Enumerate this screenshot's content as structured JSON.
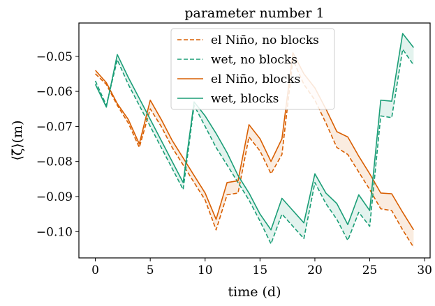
{
  "chart_data": {
    "type": "line",
    "title": "parameter number 1",
    "xlabel": "time (d)",
    "ylabel": "⟨ζ̄⟩(m)",
    "xlim": [
      -1.5,
      30.5
    ],
    "ylim": [
      -0.1075,
      -0.0405
    ],
    "xticks": [
      0,
      5,
      10,
      15,
      20,
      25,
      30
    ],
    "yticks": [
      -0.05,
      -0.06,
      -0.07,
      -0.08,
      -0.09,
      -0.1
    ],
    "xtick_labels": [
      "0",
      "5",
      "10",
      "15",
      "20",
      "25",
      "30"
    ],
    "ytick_labels": [
      "−0.05",
      "−0.06",
      "−0.07",
      "−0.08",
      "−0.09",
      "−0.10"
    ],
    "grid": false,
    "legend_position": "top-center",
    "x": [
      0,
      1,
      2,
      3,
      4,
      5,
      6,
      7,
      8,
      9,
      10,
      11,
      12,
      13,
      14,
      15,
      16,
      17,
      18,
      19,
      20,
      21,
      22,
      23,
      24,
      25,
      26,
      27,
      28,
      29
    ],
    "series": [
      {
        "name": "el Niño, no blocks",
        "style": "dashed",
        "color": "#d95f02",
        "values": [
          -0.055,
          -0.058,
          -0.064,
          -0.069,
          -0.076,
          -0.065,
          -0.07,
          -0.076,
          -0.081,
          -0.086,
          -0.091,
          -0.0995,
          -0.0895,
          -0.089,
          -0.073,
          -0.077,
          -0.0835,
          -0.078,
          -0.051,
          -0.058,
          -0.0625,
          -0.069,
          -0.076,
          -0.078,
          -0.083,
          -0.088,
          -0.0935,
          -0.094,
          -0.0995,
          -0.1045
        ]
      },
      {
        "name": "wet, no blocks",
        "style": "dashed",
        "color": "#1b9e77",
        "values": [
          -0.057,
          -0.064,
          -0.051,
          -0.058,
          -0.064,
          -0.07,
          -0.076,
          -0.082,
          -0.088,
          -0.064,
          -0.07,
          -0.076,
          -0.081,
          -0.086,
          -0.091,
          -0.097,
          -0.1035,
          -0.095,
          -0.0985,
          -0.102,
          -0.086,
          -0.092,
          -0.0965,
          -0.1025,
          -0.0945,
          -0.0985,
          -0.067,
          -0.0675,
          -0.048,
          -0.0525
        ]
      },
      {
        "name": "el Niño, blocks",
        "style": "solid",
        "color": "#d95f02",
        "values": [
          -0.054,
          -0.0575,
          -0.0635,
          -0.068,
          -0.075,
          -0.0625,
          -0.068,
          -0.074,
          -0.079,
          -0.084,
          -0.089,
          -0.0965,
          -0.086,
          -0.0855,
          -0.0695,
          -0.0735,
          -0.08,
          -0.0735,
          -0.049,
          -0.055,
          -0.059,
          -0.065,
          -0.0715,
          -0.073,
          -0.0785,
          -0.0835,
          -0.089,
          -0.0892,
          -0.0945,
          -0.0995
        ]
      },
      {
        "name": "wet, blocks",
        "style": "solid",
        "color": "#1b9e77",
        "values": [
          -0.058,
          -0.0645,
          -0.0495,
          -0.056,
          -0.062,
          -0.068,
          -0.074,
          -0.08,
          -0.086,
          -0.063,
          -0.067,
          -0.072,
          -0.0775,
          -0.084,
          -0.089,
          -0.095,
          -0.0995,
          -0.0905,
          -0.094,
          -0.0975,
          -0.0835,
          -0.089,
          -0.092,
          -0.098,
          -0.0895,
          -0.094,
          -0.0625,
          -0.0628,
          -0.0435,
          -0.0475
        ]
      }
    ]
  }
}
